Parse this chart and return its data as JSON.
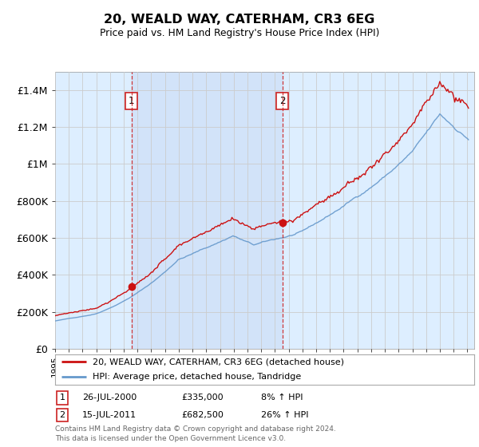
{
  "title": "20, WEALD WAY, CATERHAM, CR3 6EG",
  "subtitle": "Price paid vs. HM Land Registry's House Price Index (HPI)",
  "ylim": [
    0,
    1500000
  ],
  "yticks": [
    0,
    200000,
    400000,
    600000,
    800000,
    1000000,
    1200000,
    1400000
  ],
  "ytick_labels": [
    "£0",
    "£200K",
    "£400K",
    "£600K",
    "£800K",
    "£1M",
    "£1.2M",
    "£1.4M"
  ],
  "xlim_min": 1995,
  "xlim_max": 2025.5,
  "sale1_date": 2000.57,
  "sale1_price": 335000,
  "sale1_label": "1",
  "sale2_date": 2011.54,
  "sale2_price": 682500,
  "sale2_label": "2",
  "legend_line1": "20, WEALD WAY, CATERHAM, CR3 6EG (detached house)",
  "legend_line2": "HPI: Average price, detached house, Tandridge",
  "table_entries": [
    {
      "num": "1",
      "date": "26-JUL-2000",
      "price": "£335,000",
      "hpi": "8% ↑ HPI"
    },
    {
      "num": "2",
      "date": "15-JUL-2011",
      "price": "£682,500",
      "hpi": "26% ↑ HPI"
    }
  ],
  "footer": "Contains HM Land Registry data © Crown copyright and database right 2024.\nThis data is licensed under the Open Government Licence v3.0.",
  "hpi_color": "#6699cc",
  "price_color": "#cc1111",
  "vline_color": "#cc2222",
  "bg_color": "#ddeeff",
  "shade_color": "#ccddf5",
  "grid_color": "#cccccc",
  "marker_box_color": "#cc2222"
}
